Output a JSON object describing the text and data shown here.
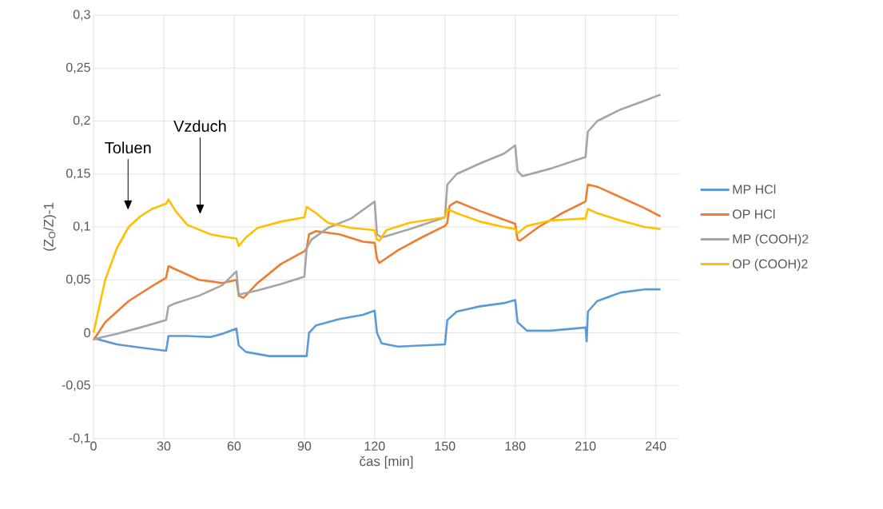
{
  "chart_data": {
    "type": "line",
    "xlabel": "čas [min]",
    "ylabel": "(Z$_{O}$/Z)-1",
    "xlim": [
      0,
      250
    ],
    "ylim": [
      -0.1,
      0.3
    ],
    "xticks": [
      0,
      30,
      60,
      90,
      120,
      150,
      180,
      210,
      240
    ],
    "yticks": [
      {
        "value": -0.1,
        "label": "-0,1"
      },
      {
        "value": -0.05,
        "label": "-0,05"
      },
      0,
      {
        "value": 0.05,
        "label": "0,05"
      },
      {
        "value": 0.1,
        "label": "0,1"
      },
      {
        "value": 0.15,
        "label": "0,15"
      },
      {
        "value": 0.2,
        "label": "0,2"
      },
      {
        "value": 0.25,
        "label": "0,25"
      },
      {
        "value": 0.3,
        "label": "0,3"
      }
    ],
    "grid": true,
    "legend": "right",
    "annotations": [
      "Toluen",
      "Vzduch"
    ],
    "series": [
      {
        "name": "MP HCl",
        "color": "#5b9bd5",
        "x": [
          0,
          10,
          20,
          31,
          32,
          40,
          50,
          55,
          61,
          62,
          65,
          75,
          85,
          91,
          92,
          95,
          105,
          115,
          120,
          121,
          123,
          130,
          140,
          150,
          151,
          155,
          165,
          175,
          180,
          181,
          185,
          195,
          205,
          210,
          210.5,
          211,
          215,
          225,
          235,
          242
        ],
        "values": [
          -0.005,
          -0.011,
          -0.014,
          -0.017,
          -0.003,
          -0.003,
          -0.004,
          -0.001,
          0.004,
          -0.012,
          -0.018,
          -0.022,
          -0.022,
          -0.022,
          0.0,
          0.007,
          0.013,
          0.017,
          0.021,
          0.0,
          -0.01,
          -0.013,
          -0.012,
          -0.011,
          0.012,
          0.02,
          0.025,
          0.028,
          0.031,
          0.01,
          0.002,
          0.002,
          0.004,
          0.005,
          -0.008,
          0.02,
          0.03,
          0.038,
          0.041,
          0.041
        ]
      },
      {
        "name": "OP HCl",
        "color": "#ed7d31",
        "x": [
          0,
          5,
          15,
          25,
          31,
          32,
          35,
          45,
          55,
          61,
          62,
          64,
          70,
          80,
          90,
          91,
          92,
          95,
          105,
          115,
          120,
          121,
          122,
          130,
          140,
          150,
          151,
          152,
          155,
          165,
          175,
          180,
          181,
          182,
          190,
          200,
          210,
          211,
          215,
          225,
          235,
          242
        ],
        "values": [
          -0.007,
          0.01,
          0.03,
          0.044,
          0.052,
          0.063,
          0.06,
          0.05,
          0.047,
          0.05,
          0.035,
          0.033,
          0.047,
          0.065,
          0.077,
          0.08,
          0.093,
          0.096,
          0.093,
          0.086,
          0.085,
          0.07,
          0.066,
          0.078,
          0.09,
          0.101,
          0.104,
          0.12,
          0.124,
          0.115,
          0.107,
          0.103,
          0.088,
          0.087,
          0.1,
          0.113,
          0.124,
          0.14,
          0.138,
          0.128,
          0.118,
          0.11
        ]
      },
      {
        "name": "MP (COOH)2",
        "color": "#a5a5a5",
        "x": [
          0,
          10,
          20,
          31,
          32,
          35,
          45,
          55,
          61,
          62,
          70,
          80,
          90,
          91,
          93,
          100,
          110,
          120,
          121,
          123,
          135,
          150,
          151,
          155,
          165,
          175,
          180,
          181,
          183,
          195,
          210,
          211,
          215,
          225,
          235,
          242
        ],
        "values": [
          -0.006,
          -0.001,
          0.005,
          0.012,
          0.025,
          0.028,
          0.035,
          0.045,
          0.058,
          0.036,
          0.04,
          0.046,
          0.053,
          0.08,
          0.088,
          0.099,
          0.108,
          0.124,
          0.093,
          0.09,
          0.098,
          0.109,
          0.14,
          0.15,
          0.16,
          0.169,
          0.177,
          0.153,
          0.148,
          0.155,
          0.166,
          0.19,
          0.2,
          0.211,
          0.219,
          0.225
        ]
      },
      {
        "name": "OP (COOH)2",
        "color": "#ffc000",
        "x": [
          0,
          5,
          10,
          15,
          20,
          25,
          31,
          32,
          35,
          40,
          50,
          55,
          61,
          62,
          65,
          70,
          80,
          90,
          91,
          95,
          100,
          110,
          120,
          121,
          122,
          125,
          135,
          150,
          151,
          155,
          165,
          175,
          180,
          181,
          185,
          195,
          210,
          211,
          215,
          225,
          235,
          242
        ],
        "values": [
          0.0,
          0.05,
          0.08,
          0.1,
          0.11,
          0.117,
          0.122,
          0.126,
          0.115,
          0.102,
          0.093,
          0.091,
          0.089,
          0.082,
          0.09,
          0.099,
          0.105,
          0.109,
          0.119,
          0.113,
          0.104,
          0.099,
          0.097,
          0.088,
          0.087,
          0.097,
          0.104,
          0.109,
          0.117,
          0.113,
          0.105,
          0.1,
          0.098,
          0.094,
          0.101,
          0.106,
          0.108,
          0.117,
          0.113,
          0.106,
          0.1,
          0.098
        ]
      }
    ]
  }
}
